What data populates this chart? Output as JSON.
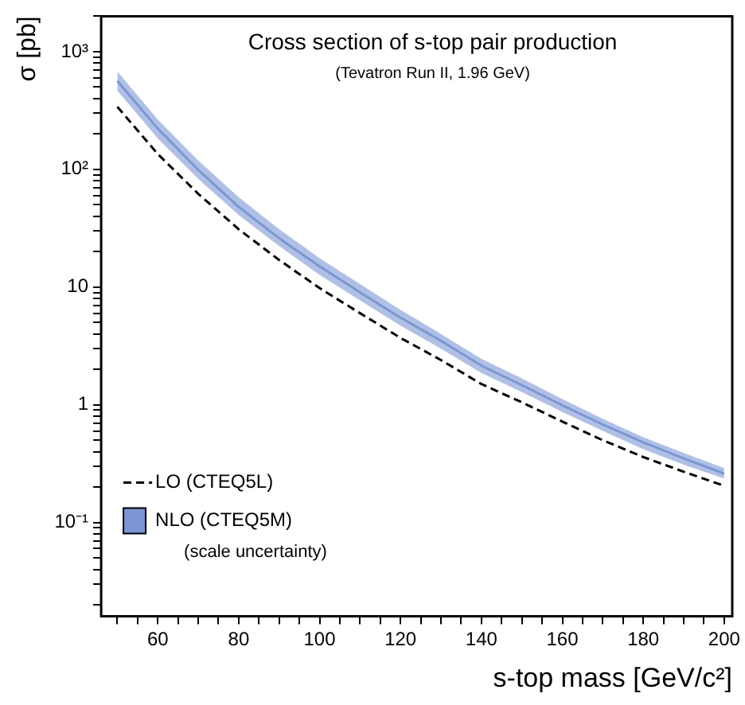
{
  "chart_data": {
    "type": "line",
    "title": "Cross section of s-top pair production",
    "subtitle": "(Tevatron Run II, 1.96 GeV)",
    "xlabel": "s-top mass [GeV/c²]",
    "ylabel": "σ [pb]",
    "x": [
      50,
      60,
      70,
      80,
      90,
      100,
      110,
      120,
      130,
      140,
      150,
      160,
      170,
      180,
      190,
      200
    ],
    "series": [
      {
        "name": "LO (CTEQ5L)",
        "color": "#000000",
        "line_style": "dashed",
        "values": [
          340,
          135,
          62,
          31,
          17,
          9.8,
          6.0,
          3.7,
          2.4,
          1.5,
          1.05,
          0.72,
          0.5,
          0.36,
          0.27,
          0.205
        ]
      },
      {
        "name": "NLO (CTEQ5M)",
        "color": "#7b96d4",
        "line_style": "solid",
        "values": [
          563,
          222,
          99,
          48,
          26,
          15,
          9.0,
          5.5,
          3.5,
          2.15,
          1.47,
          0.99,
          0.68,
          0.48,
          0.35,
          0.26
        ],
        "lower": [
          466,
          183,
          83,
          41,
          22.3,
          12.7,
          7.7,
          4.7,
          3.0,
          1.86,
          1.28,
          0.87,
          0.6,
          0.42,
          0.31,
          0.236
        ],
        "upper": [
          680,
          265,
          119,
          58,
          31,
          17.6,
          10.6,
          6.4,
          4.0,
          2.46,
          1.68,
          1.12,
          0.76,
          0.53,
          0.39,
          0.29
        ]
      }
    ],
    "annotations": [
      "(scale uncertainty)"
    ],
    "log": "y",
    "xlim": [
      46,
      202
    ],
    "ylim": [
      0.016,
      2000
    ],
    "xticks": [
      {
        "value": 50,
        "label": null
      },
      {
        "value": 55,
        "label": null
      },
      60,
      {
        "value": 65,
        "label": null
      },
      {
        "value": 70,
        "label": null
      },
      {
        "value": 75,
        "label": null
      },
      80,
      {
        "value": 85,
        "label": null
      },
      {
        "value": 90,
        "label": null
      },
      {
        "value": 95,
        "label": null
      },
      100,
      {
        "value": 105,
        "label": null
      },
      {
        "value": 110,
        "label": null
      },
      {
        "value": 115,
        "label": null
      },
      120,
      {
        "value": 125,
        "label": null
      },
      {
        "value": 130,
        "label": null
      },
      {
        "value": 135,
        "label": null
      },
      140,
      {
        "value": 145,
        "label": null
      },
      {
        "value": 150,
        "label": null
      },
      {
        "value": 155,
        "label": null
      },
      160,
      {
        "value": 165,
        "label": null
      },
      {
        "value": 170,
        "label": null
      },
      {
        "value": 175,
        "label": null
      },
      180,
      {
        "value": 185,
        "label": null
      },
      {
        "value": 190,
        "label": null
      },
      {
        "value": 195,
        "label": null
      },
      200
    ],
    "yticks": [
      {
        "value": 0.02,
        "label": null
      },
      {
        "value": 0.03,
        "label": null
      },
      {
        "value": 0.04,
        "label": null
      },
      {
        "value": 0.05,
        "label": null
      },
      {
        "value": 0.06,
        "label": null
      },
      {
        "value": 0.07,
        "label": null
      },
      {
        "value": 0.08,
        "label": null
      },
      {
        "value": 0.09,
        "label": null
      },
      {
        "value": 0.1,
        "label": "10⁻¹"
      },
      {
        "value": 0.2,
        "label": null
      },
      {
        "value": 0.3,
        "label": null
      },
      {
        "value": 0.4,
        "label": null
      },
      {
        "value": 0.5,
        "label": null
      },
      {
        "value": 0.6,
        "label": null
      },
      {
        "value": 0.7,
        "label": null
      },
      {
        "value": 0.8,
        "label": null
      },
      {
        "value": 0.9,
        "label": null
      },
      1,
      {
        "value": 2,
        "label": null
      },
      {
        "value": 3,
        "label": null
      },
      {
        "value": 4,
        "label": null
      },
      {
        "value": 5,
        "label": null
      },
      {
        "value": 6,
        "label": null
      },
      {
        "value": 7,
        "label": null
      },
      {
        "value": 8,
        "label": null
      },
      {
        "value": 9,
        "label": null
      },
      10,
      {
        "value": 20,
        "label": null
      },
      {
        "value": 30,
        "label": null
      },
      {
        "value": 40,
        "label": null
      },
      {
        "value": 50,
        "label": null
      },
      {
        "value": 60,
        "label": null
      },
      {
        "value": 70,
        "label": null
      },
      {
        "value": 80,
        "label": null
      },
      {
        "value": 90,
        "label": null
      },
      {
        "value": 100,
        "label": "10²"
      },
      {
        "value": 200,
        "label": null
      },
      {
        "value": 300,
        "label": null
      },
      {
        "value": 400,
        "label": null
      },
      {
        "value": 500,
        "label": null
      },
      {
        "value": 600,
        "label": null
      },
      {
        "value": 700,
        "label": null
      },
      {
        "value": 800,
        "label": null
      },
      {
        "value": 900,
        "label": null
      },
      {
        "value": 1000,
        "label": "10³"
      },
      {
        "value": 2000,
        "label": null
      }
    ],
    "grid": false,
    "legend": "bottom left",
    "marker": "none"
  }
}
